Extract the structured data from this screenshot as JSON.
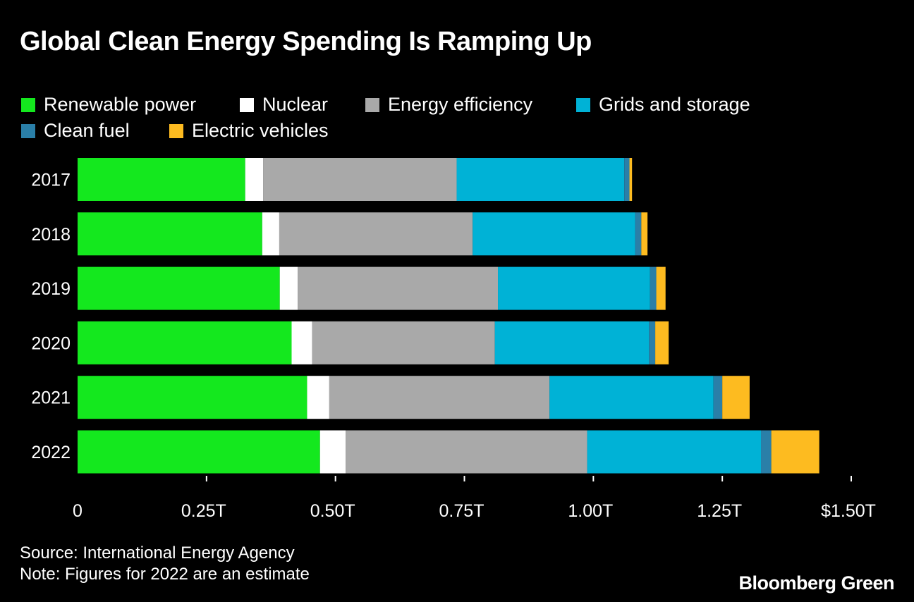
{
  "title": "Global Clean Energy Spending Is Ramping Up",
  "source": "Source: International Energy Agency",
  "note": "Note: Figures for 2022 are an estimate",
  "brand": "Bloomberg Green",
  "chart_data": {
    "type": "bar",
    "orientation": "horizontal",
    "stacked": true,
    "categories": [
      "2017",
      "2018",
      "2019",
      "2020",
      "2021",
      "2022"
    ],
    "series": [
      {
        "name": "Renewable power",
        "color": "#14e81e",
        "values": [
          0.325,
          0.358,
          0.392,
          0.415,
          0.445,
          0.47
        ]
      },
      {
        "name": "Nuclear",
        "color": "#ffffff",
        "values": [
          0.035,
          0.033,
          0.035,
          0.04,
          0.043,
          0.05
        ]
      },
      {
        "name": "Energy efficiency",
        "color": "#a9a9a9",
        "values": [
          0.375,
          0.375,
          0.388,
          0.354,
          0.427,
          0.468
        ]
      },
      {
        "name": "Grids and storage",
        "color": "#00b2d6",
        "values": [
          0.325,
          0.315,
          0.295,
          0.299,
          0.318,
          0.337
        ]
      },
      {
        "name": "Clean fuel",
        "color": "#2a7fa8",
        "values": [
          0.01,
          0.012,
          0.012,
          0.012,
          0.017,
          0.02
        ]
      },
      {
        "name": "Electric vehicles",
        "color": "#fdbb20",
        "values": [
          0.005,
          0.012,
          0.018,
          0.026,
          0.053,
          0.093
        ]
      }
    ],
    "xlim": [
      0,
      1.5
    ],
    "x_ticks": [
      0,
      0.25,
      0.5,
      0.75,
      1.0,
      1.25,
      1.5
    ],
    "x_tick_labels": [
      "0",
      "0.25T",
      "0.50T",
      "0.75T",
      "1.00T",
      "1.25T",
      "$1.50T"
    ],
    "xlabel": "",
    "ylabel": "",
    "legend_position": "top"
  }
}
